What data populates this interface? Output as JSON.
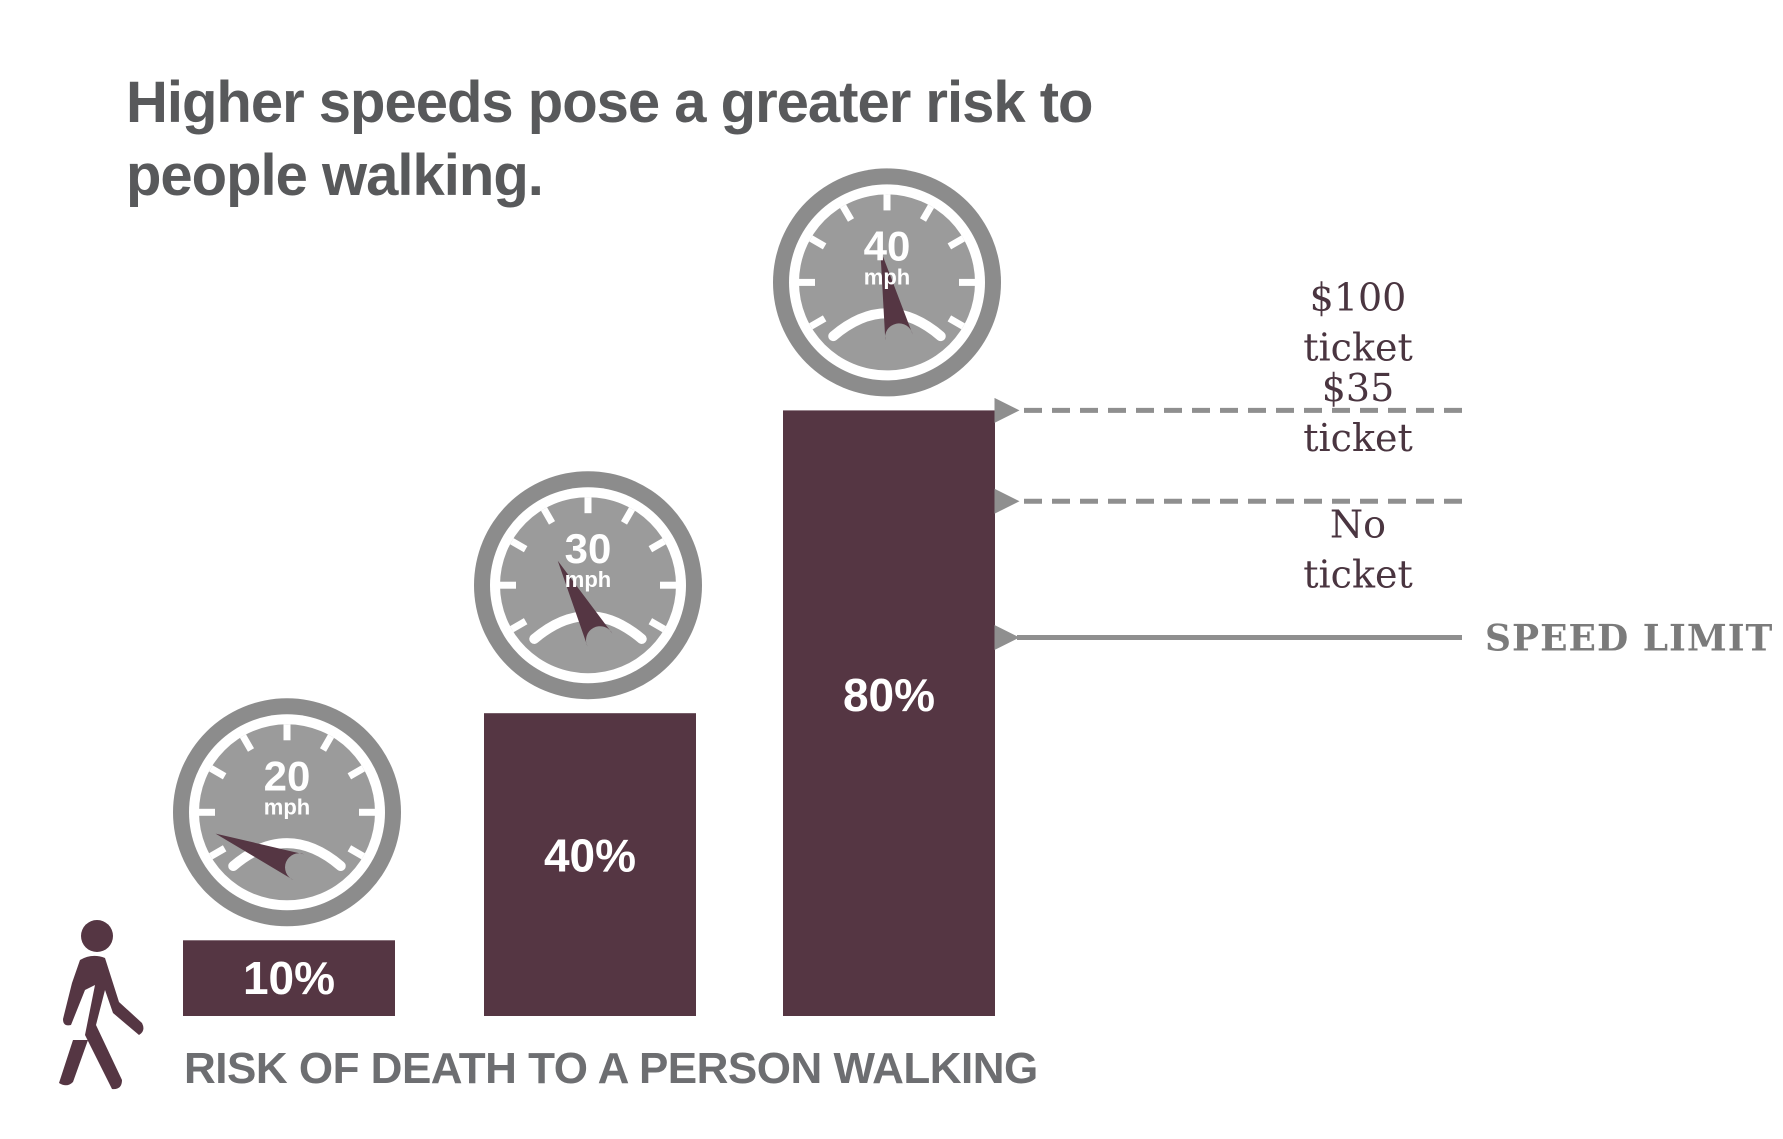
{
  "title": [
    "Higher speeds pose a greater risk to",
    "people walking."
  ],
  "colors": {
    "bar": "#553643",
    "gauge": "#8c8c8c",
    "gauge_inner": "#9b9b9b",
    "title": "#58595b",
    "arrow": "#8f8f8f",
    "ticket_text": "#4a3540"
  },
  "chart_data": {
    "type": "bar",
    "categories": [
      "20 mph",
      "30 mph",
      "40 mph"
    ],
    "values": [
      10,
      40,
      80
    ],
    "value_labels": [
      "10%",
      "40%",
      "80%"
    ],
    "ylim": [
      0,
      100
    ],
    "xlabel": "RISK OF DEATH TO A PERSON WALKING",
    "ylabel": "",
    "gauges": [
      {
        "speed": "20",
        "unit": "mph",
        "needle_angle_deg": -68
      },
      {
        "speed": "30",
        "unit": "mph",
        "needle_angle_deg": -28
      },
      {
        "speed": "40",
        "unit": "mph",
        "needle_angle_deg": -12
      }
    ],
    "annotations": [
      {
        "lines": [
          "$100",
          "ticket"
        ],
        "arrow_at_value": 80,
        "style": "dashed"
      },
      {
        "lines": [
          "$35",
          "ticket"
        ],
        "arrow_at_value": 68,
        "style": "dashed"
      },
      {
        "lines": [
          "No",
          "ticket"
        ],
        "arrow_at_value": 50,
        "style": "solid",
        "arrow_label": "SPEED LIMIT"
      }
    ],
    "icons": [
      "pedestrian-icon",
      "speedometer-icon"
    ]
  }
}
